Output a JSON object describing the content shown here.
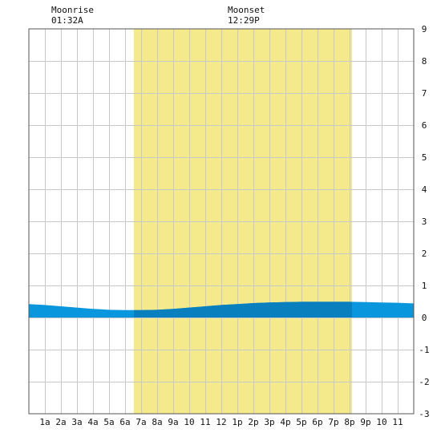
{
  "moon": {
    "rise_label": "Moonrise",
    "rise_time": "01:32A",
    "set_label": "Moonset",
    "set_time": "12:29P",
    "rise_hour": 1.53,
    "set_hour": 12.48
  },
  "chart_data": {
    "type": "area",
    "title": "",
    "xlabel": "",
    "ylabel": "",
    "xlim": [
      0,
      24
    ],
    "ylim": [
      -3,
      9
    ],
    "grid": true,
    "x_ticks": [
      {
        "x": 1,
        "label": "1a"
      },
      {
        "x": 2,
        "label": "2a"
      },
      {
        "x": 3,
        "label": "3a"
      },
      {
        "x": 4,
        "label": "4a"
      },
      {
        "x": 5,
        "label": "5a"
      },
      {
        "x": 6,
        "label": "6a"
      },
      {
        "x": 7,
        "label": "7a"
      },
      {
        "x": 8,
        "label": "8a"
      },
      {
        "x": 9,
        "label": "9a"
      },
      {
        "x": 10,
        "label": "10"
      },
      {
        "x": 11,
        "label": "11"
      },
      {
        "x": 12,
        "label": "12"
      },
      {
        "x": 13,
        "label": "1p"
      },
      {
        "x": 14,
        "label": "2p"
      },
      {
        "x": 15,
        "label": "3p"
      },
      {
        "x": 16,
        "label": "4p"
      },
      {
        "x": 17,
        "label": "5p"
      },
      {
        "x": 18,
        "label": "6p"
      },
      {
        "x": 19,
        "label": "7p"
      },
      {
        "x": 20,
        "label": "8p"
      },
      {
        "x": 21,
        "label": "9p"
      },
      {
        "x": 22,
        "label": "10"
      },
      {
        "x": 23,
        "label": "11"
      }
    ],
    "y_ticks": [
      -3,
      -2,
      -1,
      0,
      1,
      2,
      3,
      4,
      5,
      6,
      7,
      8,
      9
    ],
    "daylight": {
      "start": 6.55,
      "end": 20.15
    },
    "series": [
      {
        "x": [
          0,
          1,
          2,
          3,
          4,
          5,
          6,
          7,
          8,
          9,
          10,
          11,
          12,
          13,
          14,
          15,
          16,
          17,
          18,
          19,
          20,
          21,
          22,
          23,
          24
        ],
        "y": [
          0.42,
          0.39,
          0.35,
          0.31,
          0.27,
          0.24,
          0.23,
          0.23,
          0.24,
          0.27,
          0.31,
          0.35,
          0.39,
          0.42,
          0.45,
          0.47,
          0.48,
          0.49,
          0.49,
          0.49,
          0.49,
          0.48,
          0.47,
          0.46,
          0.44
        ]
      }
    ],
    "colors": {
      "water": "#0a96dc",
      "water_day": "#0a7fbd",
      "daylight": "#f4e98b",
      "grid": "#c8c8c8",
      "axis": "#555555"
    }
  }
}
